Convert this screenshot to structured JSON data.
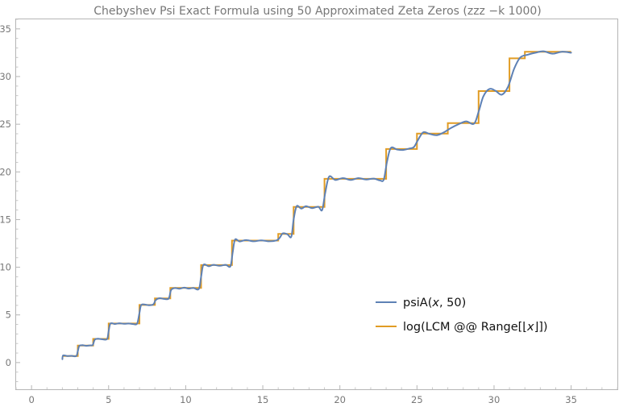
{
  "chart_data": {
    "type": "line",
    "title": "Chebyshev Psi Exact Formula using 50 Approximated Zeta Zeros (zzz −k 1000)",
    "xlabel": "",
    "ylabel": "",
    "xlim": [
      -1,
      38
    ],
    "ylim": [
      -2.8,
      36
    ],
    "x_ticks": [
      0,
      5,
      10,
      15,
      20,
      25,
      30,
      35
    ],
    "y_ticks": [
      0,
      5,
      10,
      15,
      20,
      25,
      30,
      35
    ],
    "grid": false,
    "legend_position": "lower-right",
    "series": [
      {
        "name": "psiA(x, 50)",
        "legend_parts": [
          "psiA(",
          "x",
          ", 50)"
        ],
        "color": "#5E81B5",
        "style": "smooth",
        "points": [
          [
            2.0,
            0.35
          ],
          [
            2.05,
            0.75
          ],
          [
            2.3,
            0.69
          ],
          [
            2.6,
            0.71
          ],
          [
            2.9,
            0.68
          ],
          [
            3.0,
            1.2
          ],
          [
            3.1,
            1.75
          ],
          [
            3.3,
            1.82
          ],
          [
            3.55,
            1.76
          ],
          [
            3.8,
            1.81
          ],
          [
            3.97,
            1.85
          ],
          [
            4.1,
            2.4
          ],
          [
            4.3,
            2.5
          ],
          [
            4.6,
            2.44
          ],
          [
            4.9,
            2.47
          ],
          [
            5.0,
            3.3
          ],
          [
            5.12,
            4.1
          ],
          [
            5.4,
            4.05
          ],
          [
            5.7,
            4.12
          ],
          [
            6.0,
            4.06
          ],
          [
            6.3,
            4.1
          ],
          [
            6.6,
            4.04
          ],
          [
            6.85,
            4.1
          ],
          [
            7.0,
            5.2
          ],
          [
            7.1,
            6.0
          ],
          [
            7.3,
            6.1
          ],
          [
            7.6,
            6.02
          ],
          [
            7.9,
            6.1
          ],
          [
            8.05,
            6.55
          ],
          [
            8.3,
            6.75
          ],
          [
            8.6,
            6.68
          ],
          [
            8.9,
            6.73
          ],
          [
            9.05,
            7.6
          ],
          [
            9.3,
            7.82
          ],
          [
            9.6,
            7.74
          ],
          [
            9.9,
            7.86
          ],
          [
            10.2,
            7.76
          ],
          [
            10.5,
            7.83
          ],
          [
            10.85,
            7.72
          ],
          [
            11.0,
            9.0
          ],
          [
            11.15,
            10.25
          ],
          [
            11.5,
            10.1
          ],
          [
            11.8,
            10.25
          ],
          [
            12.2,
            10.15
          ],
          [
            12.6,
            10.25
          ],
          [
            12.9,
            10.1
          ],
          [
            13.05,
            11.6
          ],
          [
            13.2,
            12.9
          ],
          [
            13.5,
            12.7
          ],
          [
            13.9,
            12.85
          ],
          [
            14.4,
            12.72
          ],
          [
            14.9,
            12.82
          ],
          [
            15.4,
            12.72
          ],
          [
            15.9,
            12.82
          ],
          [
            16.1,
            13.1
          ],
          [
            16.3,
            13.55
          ],
          [
            16.6,
            13.45
          ],
          [
            16.85,
            13.2
          ],
          [
            17.0,
            15.0
          ],
          [
            17.2,
            16.4
          ],
          [
            17.5,
            16.15
          ],
          [
            17.8,
            16.4
          ],
          [
            18.2,
            16.2
          ],
          [
            18.6,
            16.35
          ],
          [
            18.85,
            16.0
          ],
          [
            19.05,
            17.8
          ],
          [
            19.3,
            19.5
          ],
          [
            19.7,
            19.15
          ],
          [
            20.2,
            19.35
          ],
          [
            20.7,
            19.15
          ],
          [
            21.2,
            19.35
          ],
          [
            21.7,
            19.2
          ],
          [
            22.2,
            19.3
          ],
          [
            22.6,
            19.1
          ],
          [
            22.85,
            19.2
          ],
          [
            23.05,
            21.0
          ],
          [
            23.3,
            22.5
          ],
          [
            23.7,
            22.35
          ],
          [
            24.1,
            22.3
          ],
          [
            24.5,
            22.45
          ],
          [
            24.8,
            22.6
          ],
          [
            25.05,
            23.3
          ],
          [
            25.4,
            24.15
          ],
          [
            25.8,
            24.0
          ],
          [
            26.3,
            23.85
          ],
          [
            26.8,
            24.2
          ],
          [
            27.2,
            24.6
          ],
          [
            27.7,
            25.0
          ],
          [
            28.2,
            25.3
          ],
          [
            28.7,
            25.05
          ],
          [
            29.0,
            26.3
          ],
          [
            29.3,
            27.9
          ],
          [
            29.7,
            28.7
          ],
          [
            30.1,
            28.5
          ],
          [
            30.5,
            28.1
          ],
          [
            30.9,
            28.9
          ],
          [
            31.3,
            30.8
          ],
          [
            31.7,
            32.0
          ],
          [
            32.2,
            32.3
          ],
          [
            32.7,
            32.5
          ],
          [
            33.2,
            32.65
          ],
          [
            33.8,
            32.4
          ],
          [
            34.4,
            32.6
          ],
          [
            35.0,
            32.5
          ]
        ]
      },
      {
        "name": "log(LCM @@ Range[⌊x⌋])",
        "legend_parts": [
          "log(LCM @@ Range[⌊",
          "x",
          "⌋])"
        ],
        "color": "#E19C24",
        "style": "step",
        "x_start": 2,
        "x_end": 35,
        "steps": [
          [
            2,
            0.693
          ],
          [
            3,
            1.792
          ],
          [
            4,
            2.485
          ],
          [
            5,
            4.094
          ],
          [
            7,
            6.04
          ],
          [
            8,
            6.733
          ],
          [
            9,
            7.832
          ],
          [
            11,
            10.23
          ],
          [
            13,
            12.8
          ],
          [
            16,
            13.49
          ],
          [
            17,
            16.32
          ],
          [
            19,
            19.27
          ],
          [
            23,
            22.4
          ],
          [
            25,
            24.01
          ],
          [
            27,
            25.11
          ],
          [
            29,
            28.48
          ],
          [
            31,
            31.91
          ],
          [
            32,
            32.6
          ]
        ]
      }
    ]
  }
}
